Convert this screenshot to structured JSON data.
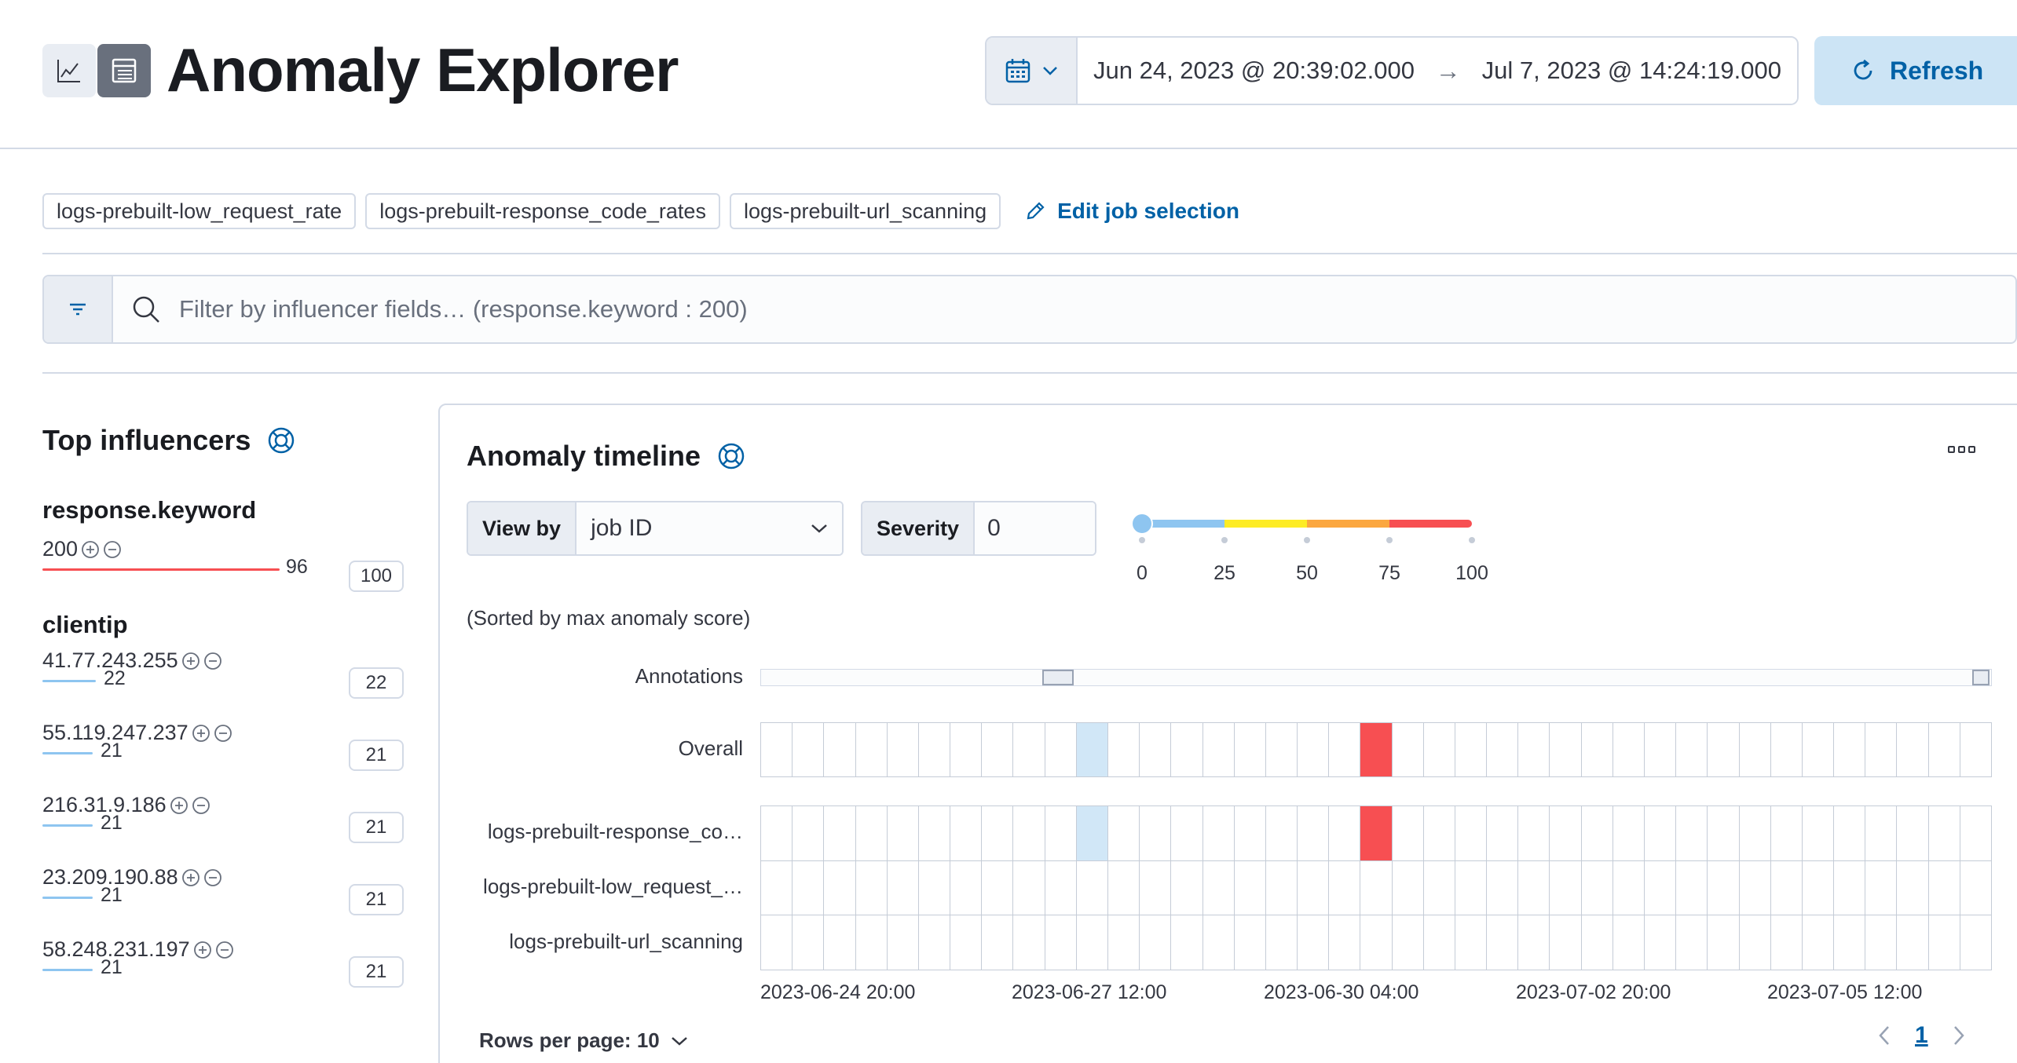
{
  "header": {
    "title": "Anomaly Explorer",
    "time_from": "Jun 24, 2023 @ 20:39:02.000",
    "time_to": "Jul 7, 2023 @ 14:24:19.000",
    "refresh_label": "Refresh"
  },
  "jobs": {
    "selected": [
      "logs-prebuilt-low_request_rate",
      "logs-prebuilt-response_code_rates",
      "logs-prebuilt-url_scanning"
    ],
    "edit_label": "Edit job selection"
  },
  "filter": {
    "placeholder": "Filter by influencer fields… (response.keyword : 200)"
  },
  "influencers": {
    "title": "Top influencers",
    "fields": [
      {
        "name": "response.keyword",
        "items": [
          {
            "value": "200",
            "score": "96",
            "total": "100"
          }
        ]
      },
      {
        "name": "clientip",
        "items": [
          {
            "value": "41.77.243.255",
            "score": "22",
            "total": "22"
          },
          {
            "value": "55.119.247.237",
            "score": "21",
            "total": "21"
          },
          {
            "value": "216.31.9.186",
            "score": "21",
            "total": "21"
          },
          {
            "value": "23.209.190.88",
            "score": "21",
            "total": "21"
          },
          {
            "value": "58.248.231.197",
            "score": "21",
            "total": "21"
          }
        ]
      }
    ]
  },
  "timeline": {
    "title": "Anomaly timeline",
    "view_by_label": "View by",
    "view_by_value": "job ID",
    "severity_label": "Severity",
    "severity_value": "0",
    "slider_ticks": [
      "0",
      "25",
      "50",
      "75",
      "100"
    ],
    "sorted_note": "(Sorted by max anomaly score)",
    "annotations_label": "Annotations",
    "overall_label": "Overall",
    "lanes": [
      "logs-prebuilt-response_co…",
      "logs-prebuilt-low_request_…",
      "logs-prebuilt-url_scanning"
    ],
    "x_ticks": [
      "2023-06-24 20:00",
      "2023-06-27 12:00",
      "2023-06-30 04:00",
      "2023-07-02 20:00",
      "2023-07-05 12:00"
    ],
    "rows_per_page_label": "Rows per page: 10",
    "current_page": "1",
    "colors": {
      "low": "#8ec5f0",
      "warning": "#fdec25",
      "minor": "#fba740",
      "critical": "#f74f52",
      "low_cell": "#d1e7f7"
    }
  }
}
